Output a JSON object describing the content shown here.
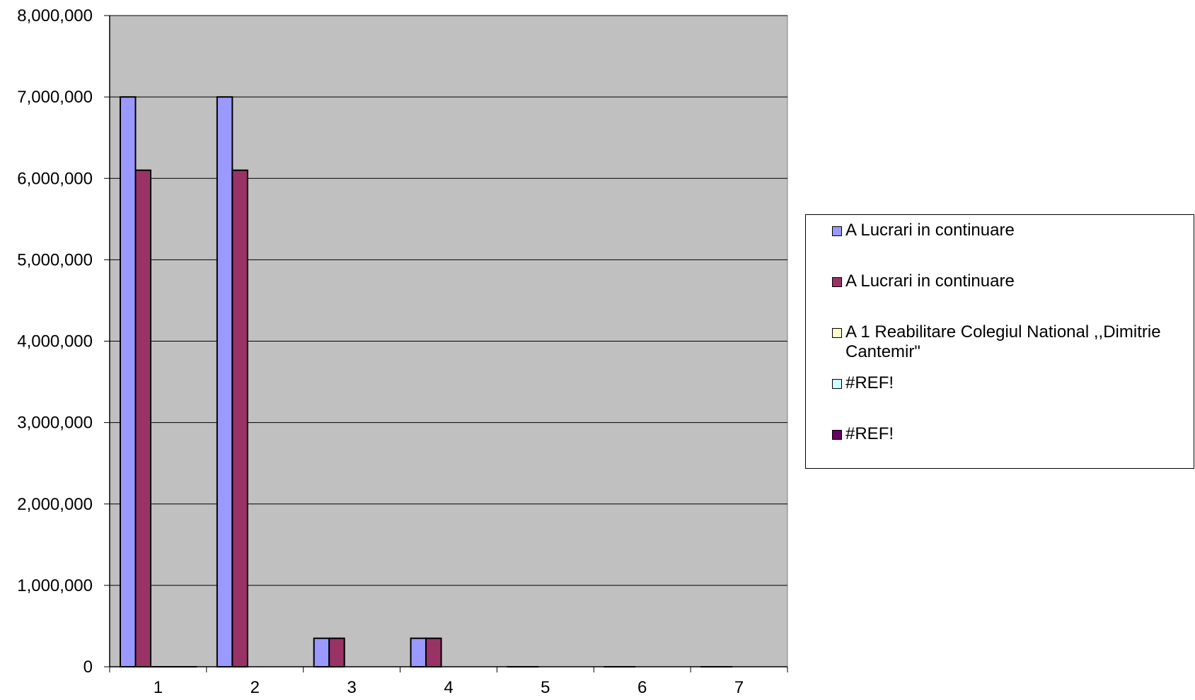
{
  "chart_data": {
    "type": "bar",
    "categories": [
      "1",
      "2",
      "3",
      "4",
      "5",
      "6",
      "7"
    ],
    "ylim": [
      0,
      8000000
    ],
    "ytick_labels": [
      "0",
      "1,000,000",
      "2,000,000",
      "3,000,000",
      "4,000,000",
      "5,000,000",
      "6,000,000",
      "7,000,000",
      "8,000,000"
    ],
    "grid": true,
    "plot_background": "#c0c0c0",
    "legend_position": "right",
    "series": [
      {
        "name": "A Lucrari in continuare",
        "color": "#9999ff",
        "values": [
          7000000,
          7000000,
          350000,
          350000,
          0,
          0,
          0
        ]
      },
      {
        "name": "A Lucrari in continuare",
        "color": "#993366",
        "values": [
          6100000,
          6100000,
          350000,
          350000,
          0,
          0,
          0
        ]
      },
      {
        "name": "A 1 Reabilitare Colegiul National ,,Dimitrie Cantemir\"",
        "color": "#ffffcc",
        "values": [
          0,
          null,
          null,
          null,
          null,
          null,
          null
        ]
      },
      {
        "name": "#REF!",
        "color": "#ccffff",
        "values": [
          0,
          null,
          null,
          null,
          null,
          null,
          null
        ]
      },
      {
        "name": "#REF!",
        "color": "#660066",
        "values": [
          0,
          null,
          null,
          null,
          null,
          null,
          null
        ]
      }
    ]
  }
}
